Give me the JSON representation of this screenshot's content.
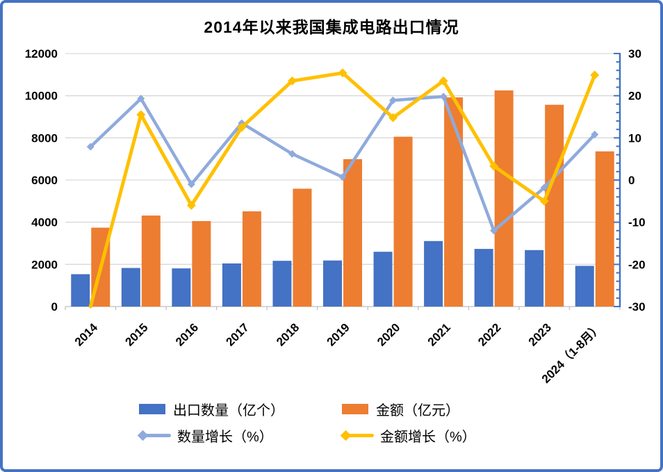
{
  "chart_data": {
    "type": "combo-bar-line",
    "title": "2014年以来我国集成电路出口情况",
    "categories": [
      "2014",
      "2015",
      "2016",
      "2017",
      "2018",
      "2019",
      "2020",
      "2021",
      "2022",
      "2023",
      "2024（1-8月）"
    ],
    "series": [
      {
        "name": "出口数量（亿个）",
        "type": "bar",
        "axis": "left",
        "color": "#4472C4",
        "values": [
          1535,
          1830,
          1810,
          2045,
          2170,
          2185,
          2598,
          3107,
          2734,
          2678,
          1930
        ]
      },
      {
        "name": "金额（亿元）",
        "type": "bar",
        "axis": "left",
        "color": "#ED7D31",
        "values": [
          3742,
          4316,
          4055,
          4515,
          5590,
          6990,
          8055,
          9920,
          10250,
          9570,
          7360
        ]
      },
      {
        "name": "数量增长（%）",
        "type": "line",
        "axis": "right",
        "color": "#8FAADC",
        "values": [
          7.9,
          19.3,
          -1.0,
          13.5,
          6.2,
          0.7,
          18.9,
          19.8,
          -12.0,
          -1.8,
          10.8
        ]
      },
      {
        "name": "金额增长（%）",
        "type": "line",
        "axis": "right",
        "color": "#FFC000",
        "values": [
          -30,
          15.5,
          -6.0,
          12.5,
          23.5,
          25.4,
          14.8,
          23.5,
          3.3,
          -5.0,
          24.9
        ]
      }
    ],
    "left_axis": {
      "min": 0,
      "max": 12000,
      "step": 2000,
      "labels": [
        "0",
        "2000",
        "4000",
        "6000",
        "8000",
        "10000",
        "12000"
      ]
    },
    "right_axis": {
      "min": -30,
      "max": 30,
      "step": 10,
      "minor_step": 2,
      "labels": [
        "-30",
        "-20",
        "-10",
        "0",
        "10",
        "20",
        "30"
      ],
      "negative_color": "#E60000",
      "axis_color": "#4472C4"
    },
    "grid": true,
    "grid_color": "#D9D9D9",
    "baseline_color": "#BFBFBF",
    "legend_position": "bottom"
  },
  "frame": {
    "border_color": "#4472C4",
    "background": "#FFFFFF"
  }
}
